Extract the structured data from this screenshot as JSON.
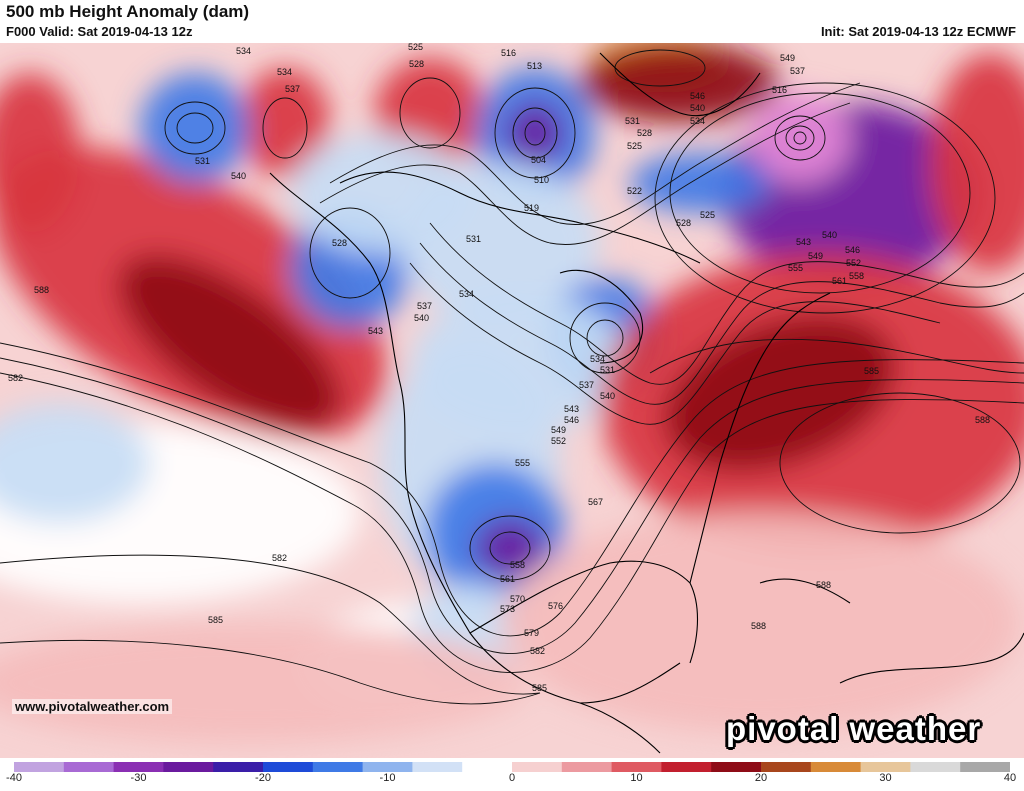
{
  "header": {
    "title": "500 mb Height Anomaly (dam)",
    "valid": "F000 Valid: Sat 2019-04-13 12z",
    "init": "Init: Sat 2019-04-13 12z ECMWF"
  },
  "footer": {
    "website": "www.pivotalweather.com",
    "brand": "pivotal weather"
  },
  "colorbar": {
    "range": [
      -40,
      40
    ],
    "ticks": [
      -40,
      -30,
      -20,
      -10,
      0,
      10,
      20,
      30,
      40
    ],
    "colors": [
      "#c1a3e0",
      "#a86ad4",
      "#8a2fb3",
      "#6a1a9e",
      "#3a1ea8",
      "#1e4bd8",
      "#3f7ae6",
      "#8fb4ee",
      "#d2e1f6",
      "#ffffff",
      "#f6d0d0",
      "#ec9aa0",
      "#df5a62",
      "#c21f2e",
      "#8e0c17",
      "#a8461c",
      "#d88a38",
      "#e7c69a",
      "#d9d9d9",
      "#a8a8a8"
    ]
  },
  "map": {
    "anomaly_colors": {
      "strong_positive": "#8e0c17",
      "positive": "#d8353f",
      "weak_positive": "#f4bcbc",
      "neutral": "#ffffff",
      "weak_negative": "#c7dcf4",
      "negative": "#3f7ae6",
      "strong_negative": "#6a1a9e",
      "extreme_negative": "#e58ad8",
      "extreme_positive": "#e08a2a"
    },
    "height_contour_labels": [
      "534",
      "525",
      "528",
      "516",
      "513",
      "534",
      "537",
      "531",
      "540",
      "504",
      "510",
      "519",
      "528",
      "549",
      "537",
      "516",
      "546",
      "540",
      "534",
      "531",
      "528",
      "525",
      "522",
      "525",
      "528",
      "543",
      "540",
      "549",
      "546",
      "555",
      "552",
      "558",
      "561",
      "588",
      "531",
      "534",
      "537",
      "540",
      "543",
      "582",
      "531",
      "534",
      "537",
      "540",
      "543",
      "546",
      "549",
      "552",
      "555",
      "585",
      "588",
      "567",
      "558",
      "561",
      "570",
      "573",
      "576",
      "582",
      "579",
      "582",
      "588",
      "585",
      "585",
      "588"
    ]
  }
}
